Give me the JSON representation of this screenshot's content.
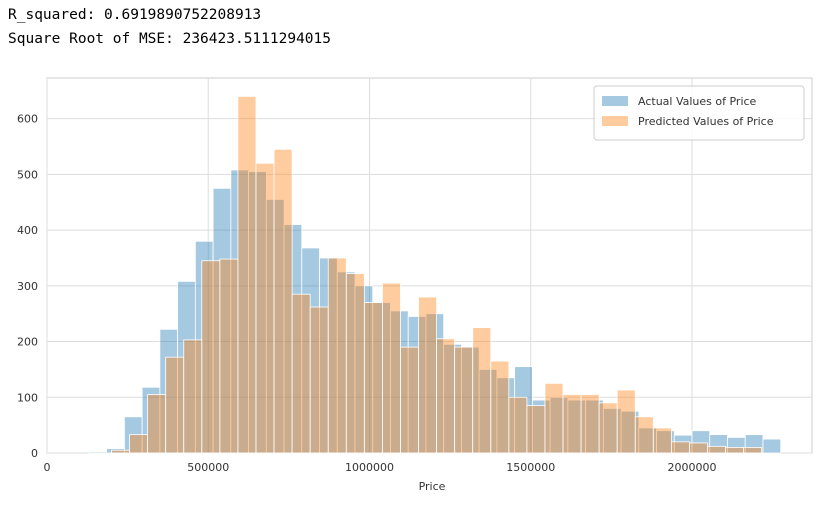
{
  "output": [
    "R_squared: 0.6919890752208913",
    "Square Root of MSE: 236423.5111294015"
  ],
  "chart_data": {
    "type": "histogram",
    "xlabel": "Price",
    "xlim": [
      0,
      2372000
    ],
    "ylim": [
      0,
      673
    ],
    "xticks": [
      0,
      500000,
      1000000,
      1500000,
      2000000
    ],
    "yticks": [
      0,
      100,
      200,
      300,
      400,
      500,
      600
    ],
    "grid": true,
    "legend": "upper right",
    "series": [
      {
        "name": "Actual Values of Price",
        "color": "#1f77b4",
        "bins": [
          130000,
          185000,
          240000,
          295000,
          350000,
          405000,
          460000,
          515000,
          570000,
          625000,
          680000,
          735000,
          790000,
          845000,
          900000,
          955000,
          1010000,
          1065000,
          1120000,
          1175000,
          1230000,
          1285000,
          1340000,
          1395000,
          1450000,
          1505000,
          1560000,
          1615000,
          1670000,
          1725000,
          1780000,
          1835000,
          1890000,
          1945000,
          2000000,
          2055000,
          2110000,
          2165000,
          2220000,
          2275000
        ],
        "values": [
          2,
          8,
          65,
          118,
          222,
          308,
          380,
          475,
          508,
          505,
          455,
          410,
          368,
          350,
          325,
          300,
          270,
          255,
          245,
          250,
          195,
          190,
          150,
          135,
          155,
          95,
          100,
          95,
          95,
          80,
          75,
          45,
          40,
          32,
          40,
          33,
          28,
          33,
          25
        ]
      },
      {
        "name": "Predicted Values of Price",
        "color": "#ff7f0e",
        "bins": [
          200000,
          256000,
          312000,
          368000,
          424000,
          480000,
          536000,
          592000,
          648000,
          704000,
          760000,
          816000,
          872000,
          928000,
          984000,
          1040000,
          1096000,
          1152000,
          1208000,
          1264000,
          1320000,
          1376000,
          1432000,
          1488000,
          1544000,
          1600000,
          1656000,
          1712000,
          1768000,
          1824000,
          1880000,
          1936000,
          1992000,
          2048000,
          2104000,
          2160000,
          2216000
        ],
        "values": [
          5,
          33,
          105,
          172,
          203,
          345,
          348,
          640,
          520,
          545,
          285,
          262,
          350,
          322,
          270,
          305,
          190,
          280,
          205,
          190,
          225,
          165,
          100,
          85,
          125,
          105,
          105,
          90,
          113,
          65,
          45,
          20,
          18,
          12,
          10,
          10
        ]
      }
    ]
  }
}
